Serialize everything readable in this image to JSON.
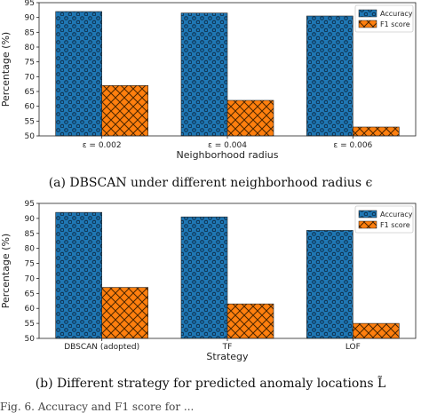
{
  "chart_data": [
    {
      "type": "bar",
      "categories": [
        "ε = 0.002",
        "ε = 0.004",
        "ε = 0.006"
      ],
      "series": [
        {
          "name": "Accuracy",
          "values": [
            92,
            91.5,
            90.5
          ],
          "color": "#1f77b4"
        },
        {
          "name": "F1 score",
          "values": [
            67,
            62,
            53
          ],
          "color": "#ff7f0e"
        }
      ],
      "xlabel": "Neighborhood radius",
      "ylabel": "Percentage (%)",
      "ylim": [
        50,
        95
      ],
      "yticks": [
        50,
        55,
        60,
        65,
        70,
        75,
        80,
        85,
        90,
        95
      ],
      "legend": "top-right",
      "grid": false,
      "caption": "(a)  DBSCAN under different neighborhood radius ϵ"
    },
    {
      "type": "bar",
      "categories": [
        "DBSCAN (adopted)",
        "TF",
        "LOF"
      ],
      "series": [
        {
          "name": "Accuracy",
          "values": [
            92,
            90.5,
            86
          ],
          "color": "#1f77b4"
        },
        {
          "name": "F1 score",
          "values": [
            67,
            61.5,
            55
          ],
          "color": "#ff7f0e"
        }
      ],
      "xlabel": "Strategy",
      "ylabel": "Percentage (%)",
      "ylim": [
        50,
        95
      ],
      "yticks": [
        50,
        55,
        60,
        65,
        70,
        75,
        80,
        85,
        90,
        95
      ],
      "legend": "top-right",
      "grid": false,
      "caption": "(b)  Different strategy for predicted anomaly locations L̃"
    }
  ],
  "footer_text": "Fig. 6.  Accuracy and F1 score for ..."
}
